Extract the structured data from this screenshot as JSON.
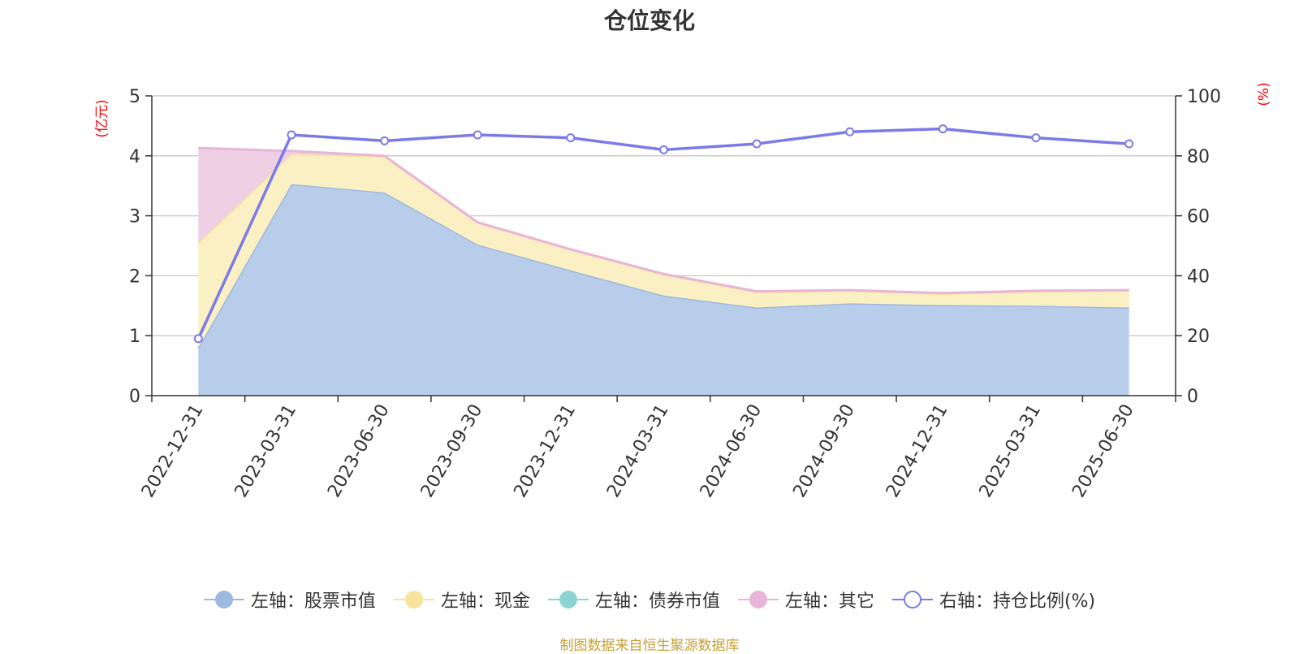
{
  "title": "仓位变化",
  "source_note": "制图数据来自恒生聚源数据库",
  "chart_data": {
    "type": "area",
    "title": "仓位变化",
    "categories": [
      "2022-12-31",
      "2023-03-31",
      "2023-06-30",
      "2023-09-30",
      "2023-12-31",
      "2024-03-31",
      "2024-06-30",
      "2024-09-30",
      "2024-12-31",
      "2025-03-31",
      "2025-06-30"
    ],
    "left_axis": {
      "unit_label": "(亿元)",
      "ylim": [
        0,
        5
      ],
      "ticks": [
        "0",
        "1",
        "2",
        "3",
        "4",
        "5"
      ]
    },
    "right_axis": {
      "unit_label": "(%)",
      "ylim": [
        0,
        100
      ],
      "ticks": [
        "0",
        "20",
        "40",
        "60",
        "80",
        "100"
      ]
    },
    "grid": true,
    "legend_position": "bottom",
    "series": [
      {
        "name": "左轴：股票市值",
        "axis": "left",
        "stack": true,
        "kind": "area",
        "color": "#9eb8e0",
        "fill": "#b8cdea",
        "values": [
          0.8,
          3.53,
          3.39,
          2.52,
          2.09,
          1.67,
          1.47,
          1.54,
          1.51,
          1.5,
          1.47
        ]
      },
      {
        "name": "左轴：现金",
        "axis": "left",
        "stack": true,
        "kind": "area",
        "color": "#f7e39a",
        "fill": "#fbf0c4",
        "values": [
          1.75,
          0.5,
          0.6,
          0.37,
          0.35,
          0.35,
          0.26,
          0.21,
          0.19,
          0.24,
          0.28
        ]
      },
      {
        "name": "左轴：债券市值",
        "axis": "left",
        "stack": true,
        "kind": "area",
        "color": "#8dd3d3",
        "fill": "#b9e6e6",
        "values": [
          0,
          0,
          0,
          0,
          0,
          0,
          0,
          0,
          0,
          0,
          0
        ]
      },
      {
        "name": "左轴：其它",
        "axis": "left",
        "stack": true,
        "kind": "area",
        "color": "#e8b4d8",
        "fill": "#efcfe4",
        "values": [
          1.58,
          0.05,
          0.01,
          0.0,
          0.0,
          0.01,
          0.01,
          0.01,
          0.01,
          0.01,
          0.01
        ]
      },
      {
        "name": "右轴：持仓比例(%)",
        "axis": "right",
        "stack": false,
        "kind": "line",
        "color": "#7b7be8",
        "fill": "none",
        "values": [
          19,
          87,
          85,
          87,
          86,
          82,
          84,
          88,
          89,
          86,
          84
        ]
      }
    ]
  }
}
